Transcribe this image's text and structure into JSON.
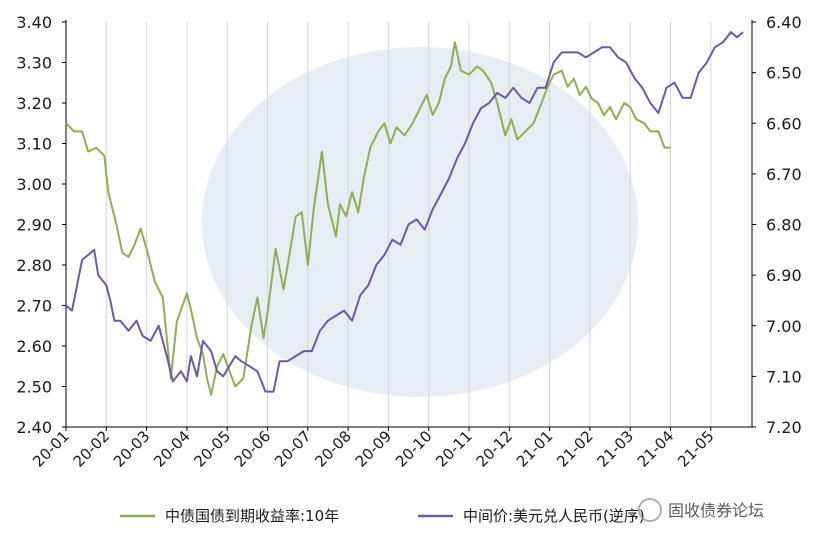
{
  "chart_data": {
    "type": "line",
    "title": "",
    "xlabel": "",
    "ylabel": "",
    "x_ticks": [
      "20-01",
      "20-02",
      "20-03",
      "20-04",
      "20-05",
      "20-06",
      "20-07",
      "20-08",
      "20-09",
      "20-10",
      "20-11",
      "20-12",
      "21-01",
      "21-02",
      "21-03",
      "21-04",
      "21-05"
    ],
    "y_left": {
      "ticks": [
        "3.40",
        "3.30",
        "3.20",
        "3.10",
        "3.00",
        "2.90",
        "2.80",
        "2.70",
        "2.60",
        "2.50",
        "2.40"
      ],
      "ylim": [
        2.4,
        3.4
      ]
    },
    "y_right": {
      "ticks": [
        "6.40",
        "6.50",
        "6.60",
        "6.70",
        "6.80",
        "6.90",
        "7.00",
        "7.10",
        "7.20"
      ],
      "ylim": [
        7.2,
        6.4
      ],
      "inverted": true
    },
    "grid": "vertical",
    "legend_position": "bottom",
    "series": [
      {
        "name": "中债国债到期收益率:10年",
        "axis": "left",
        "color": "#8db04f",
        "points": [
          [
            0.0,
            3.15
          ],
          [
            0.2,
            3.13
          ],
          [
            0.4,
            3.13
          ],
          [
            0.55,
            3.08
          ],
          [
            0.75,
            3.09
          ],
          [
            0.95,
            3.07
          ],
          [
            1.05,
            2.98
          ],
          [
            1.25,
            2.9
          ],
          [
            1.4,
            2.83
          ],
          [
            1.55,
            2.82
          ],
          [
            1.7,
            2.85
          ],
          [
            1.85,
            2.89
          ],
          [
            2.0,
            2.84
          ],
          [
            2.2,
            2.76
          ],
          [
            2.4,
            2.72
          ],
          [
            2.5,
            2.62
          ],
          [
            2.6,
            2.52
          ],
          [
            2.75,
            2.66
          ],
          [
            3.0,
            2.73
          ],
          [
            3.1,
            2.69
          ],
          [
            3.25,
            2.62
          ],
          [
            3.4,
            2.58
          ],
          [
            3.5,
            2.52
          ],
          [
            3.6,
            2.48
          ],
          [
            3.75,
            2.55
          ],
          [
            3.9,
            2.58
          ],
          [
            4.05,
            2.54
          ],
          [
            4.2,
            2.5
          ],
          [
            4.4,
            2.52
          ],
          [
            4.6,
            2.65
          ],
          [
            4.75,
            2.72
          ],
          [
            4.9,
            2.62
          ],
          [
            5.0,
            2.68
          ],
          [
            5.2,
            2.84
          ],
          [
            5.4,
            2.74
          ],
          [
            5.55,
            2.83
          ],
          [
            5.7,
            2.92
          ],
          [
            5.85,
            2.93
          ],
          [
            6.0,
            2.8
          ],
          [
            6.15,
            2.94
          ],
          [
            6.25,
            3.01
          ],
          [
            6.35,
            3.08
          ],
          [
            6.5,
            2.95
          ],
          [
            6.6,
            2.91
          ],
          [
            6.7,
            2.87
          ],
          [
            6.8,
            2.95
          ],
          [
            6.95,
            2.92
          ],
          [
            7.1,
            2.98
          ],
          [
            7.25,
            2.93
          ],
          [
            7.4,
            3.02
          ],
          [
            7.55,
            3.09
          ],
          [
            7.75,
            3.13
          ],
          [
            7.9,
            3.15
          ],
          [
            8.05,
            3.1
          ],
          [
            8.2,
            3.14
          ],
          [
            8.4,
            3.12
          ],
          [
            8.6,
            3.15
          ],
          [
            8.8,
            3.19
          ],
          [
            8.95,
            3.22
          ],
          [
            9.1,
            3.17
          ],
          [
            9.25,
            3.2
          ],
          [
            9.4,
            3.26
          ],
          [
            9.55,
            3.29
          ],
          [
            9.65,
            3.35
          ],
          [
            9.8,
            3.28
          ],
          [
            10.0,
            3.27
          ],
          [
            10.2,
            3.29
          ],
          [
            10.35,
            3.28
          ],
          [
            10.55,
            3.25
          ],
          [
            10.7,
            3.2
          ],
          [
            10.9,
            3.12
          ],
          [
            11.05,
            3.16
          ],
          [
            11.2,
            3.11
          ],
          [
            11.4,
            3.13
          ],
          [
            11.6,
            3.15
          ],
          [
            11.8,
            3.2
          ],
          [
            11.95,
            3.24
          ],
          [
            12.1,
            3.27
          ],
          [
            12.3,
            3.28
          ],
          [
            12.45,
            3.24
          ],
          [
            12.6,
            3.26
          ],
          [
            12.75,
            3.22
          ],
          [
            12.9,
            3.24
          ],
          [
            13.05,
            3.21
          ],
          [
            13.2,
            3.2
          ],
          [
            13.35,
            3.17
          ],
          [
            13.5,
            3.19
          ],
          [
            13.65,
            3.16
          ],
          [
            13.85,
            3.2
          ],
          [
            14.0,
            3.19
          ],
          [
            14.15,
            3.16
          ],
          [
            14.35,
            3.15
          ],
          [
            14.5,
            3.13
          ],
          [
            14.7,
            3.13
          ],
          [
            14.85,
            3.09
          ],
          [
            15.0,
            3.09
          ]
        ]
      },
      {
        "name": "中间价:美元兑人民币(逆序)",
        "axis": "right",
        "color": "#6e5aa0",
        "points": [
          [
            0.0,
            6.96
          ],
          [
            0.15,
            6.97
          ],
          [
            0.25,
            6.93
          ],
          [
            0.4,
            6.87
          ],
          [
            0.55,
            6.86
          ],
          [
            0.7,
            6.85
          ],
          [
            0.8,
            6.9
          ],
          [
            1.0,
            6.92
          ],
          [
            1.1,
            6.95
          ],
          [
            1.2,
            6.99
          ],
          [
            1.35,
            6.99
          ],
          [
            1.55,
            7.01
          ],
          [
            1.75,
            6.99
          ],
          [
            1.9,
            7.02
          ],
          [
            2.1,
            7.03
          ],
          [
            2.3,
            7.0
          ],
          [
            2.5,
            7.06
          ],
          [
            2.65,
            7.11
          ],
          [
            2.85,
            7.09
          ],
          [
            3.0,
            7.11
          ],
          [
            3.1,
            7.06
          ],
          [
            3.25,
            7.1
          ],
          [
            3.4,
            7.03
          ],
          [
            3.6,
            7.05
          ],
          [
            3.75,
            7.09
          ],
          [
            3.9,
            7.1
          ],
          [
            4.05,
            7.08
          ],
          [
            4.2,
            7.06
          ],
          [
            4.35,
            7.07
          ],
          [
            4.55,
            7.08
          ],
          [
            4.75,
            7.09
          ],
          [
            4.95,
            7.13
          ],
          [
            5.15,
            7.13
          ],
          [
            5.3,
            7.07
          ],
          [
            5.5,
            7.07
          ],
          [
            5.7,
            7.06
          ],
          [
            5.9,
            7.05
          ],
          [
            6.1,
            7.05
          ],
          [
            6.3,
            7.01
          ],
          [
            6.5,
            6.99
          ],
          [
            6.7,
            6.98
          ],
          [
            6.9,
            6.97
          ],
          [
            7.1,
            6.99
          ],
          [
            7.3,
            6.94
          ],
          [
            7.5,
            6.92
          ],
          [
            7.7,
            6.88
          ],
          [
            7.9,
            6.86
          ],
          [
            8.1,
            6.83
          ],
          [
            8.3,
            6.84
          ],
          [
            8.5,
            6.8
          ],
          [
            8.7,
            6.79
          ],
          [
            8.9,
            6.81
          ],
          [
            9.1,
            6.77
          ],
          [
            9.3,
            6.74
          ],
          [
            9.5,
            6.71
          ],
          [
            9.7,
            6.67
          ],
          [
            9.9,
            6.64
          ],
          [
            10.1,
            6.6
          ],
          [
            10.3,
            6.57
          ],
          [
            10.5,
            6.56
          ],
          [
            10.7,
            6.54
          ],
          [
            10.9,
            6.55
          ],
          [
            11.1,
            6.53
          ],
          [
            11.3,
            6.55
          ],
          [
            11.5,
            6.56
          ],
          [
            11.7,
            6.53
          ],
          [
            11.9,
            6.53
          ],
          [
            12.1,
            6.48
          ],
          [
            12.3,
            6.46
          ],
          [
            12.5,
            6.46
          ],
          [
            12.7,
            6.46
          ],
          [
            12.9,
            6.47
          ],
          [
            13.1,
            6.46
          ],
          [
            13.3,
            6.45
          ],
          [
            13.5,
            6.45
          ],
          [
            13.7,
            6.47
          ],
          [
            13.9,
            6.48
          ],
          [
            14.1,
            6.51
          ],
          [
            14.3,
            6.53
          ],
          [
            14.5,
            6.56
          ],
          [
            14.7,
            6.58
          ],
          [
            14.9,
            6.53
          ],
          [
            15.1,
            6.52
          ],
          [
            15.3,
            6.55
          ],
          [
            15.5,
            6.55
          ],
          [
            15.7,
            6.5
          ],
          [
            15.9,
            6.48
          ],
          [
            16.1,
            6.45
          ],
          [
            16.3,
            6.44
          ],
          [
            16.5,
            6.42
          ],
          [
            16.65,
            6.43
          ],
          [
            16.8,
            6.42
          ]
        ]
      }
    ]
  },
  "watermark": {
    "text": "固收债券论坛"
  }
}
